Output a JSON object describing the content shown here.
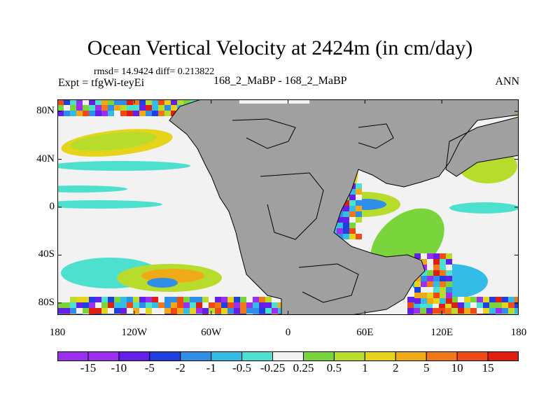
{
  "header": {
    "title": "Ocean Vertical Velocity at 2424m (in cm/day)",
    "stats": "rmsd= 14.9424 diff= 0.213822",
    "expt": "Expt = tfgWi-teyEi",
    "runs": "168_2_MaBP - 168_2_MaBP",
    "season": "ANN"
  },
  "chart_data": {
    "type": "heatmap",
    "title": "Ocean Vertical Velocity at 2424m (in cm/day)",
    "subtitle": "168_2_MaBP - 168_2_MaBP",
    "units": "cm/day",
    "xlim": [
      -180,
      180
    ],
    "ylim": [
      -90,
      90
    ],
    "x_ticks": [
      {
        "value": -180,
        "label": "180"
      },
      {
        "value": -120,
        "label": "120W"
      },
      {
        "value": -60,
        "label": "60W"
      },
      {
        "value": 0,
        "label": "0"
      },
      {
        "value": 60,
        "label": "60E"
      },
      {
        "value": 120,
        "label": "120E"
      },
      {
        "value": 180,
        "label": "180"
      }
    ],
    "y_ticks": [
      {
        "value": 80,
        "label": "80N"
      },
      {
        "value": 40,
        "label": "40N"
      },
      {
        "value": 0,
        "label": "0"
      },
      {
        "value": -40,
        "label": "40S"
      },
      {
        "value": -80,
        "label": "80S"
      }
    ],
    "land_color": "#a0a0a0",
    "colorbar": {
      "levels": [
        "-15",
        "-10",
        "-5",
        "-2",
        "-1",
        "-0.5",
        "-0.25",
        "0.25",
        "0.5",
        "1",
        "2",
        "5",
        "10",
        "15"
      ],
      "colors": [
        "#9b2ff0",
        "#6420e8",
        "#1f3fe0",
        "#2f8ee8",
        "#33bde6",
        "#4ee0cf",
        "#f2f2f2",
        "#7ad43c",
        "#b8dc2c",
        "#e6d41c",
        "#f0aa18",
        "#f07818",
        "#f04a14",
        "#e01e10"
      ]
    }
  }
}
